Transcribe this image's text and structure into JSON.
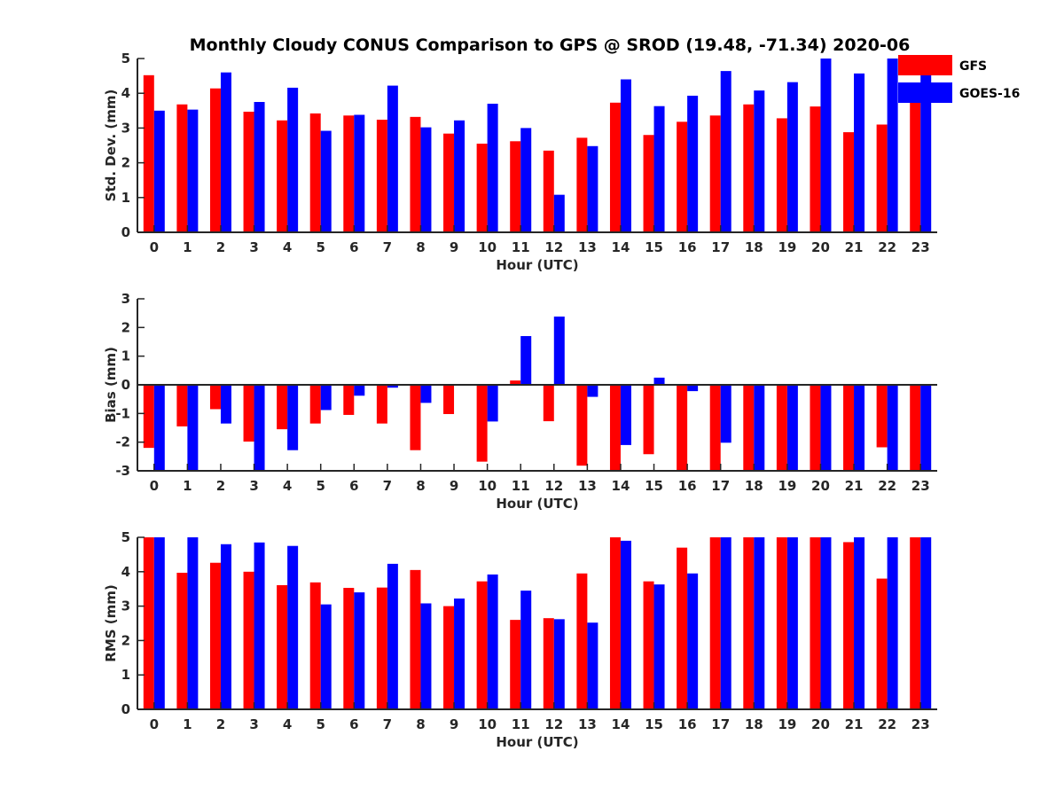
{
  "chart_data": {
    "type": "bar",
    "title": "Monthly Cloudy CONUS Comparison to GPS @ SROD (19.48, -71.34) 2020-06",
    "categories": [
      "0",
      "1",
      "2",
      "3",
      "4",
      "5",
      "6",
      "7",
      "8",
      "9",
      "10",
      "11",
      "12",
      "13",
      "14",
      "15",
      "16",
      "17",
      "18",
      "19",
      "20",
      "21",
      "22",
      "23"
    ],
    "legend": {
      "placement": "top-right",
      "entries": [
        {
          "name": "GFS",
          "color": "#ff0000"
        },
        {
          "name": "GOES-16",
          "color": "#0000ff"
        }
      ]
    },
    "panels": [
      {
        "ylabel": "Std. Dev. (mm)",
        "xlabel": "Hour (UTC)",
        "ylim": [
          0,
          5
        ],
        "yticks": [
          0,
          1,
          2,
          3,
          4,
          5
        ],
        "zero_line": false,
        "series": [
          {
            "name": "GFS",
            "color": "#ff0000",
            "values": [
              4.52,
              3.68,
              4.14,
              3.47,
              3.22,
              3.42,
              3.36,
              3.24,
              3.32,
              2.84,
              2.55,
              2.62,
              2.35,
              2.72,
              3.73,
              2.8,
              3.18,
              3.36,
              3.68,
              3.28,
              3.62,
              2.88,
              3.1,
              3.8
            ]
          },
          {
            "name": "GOES-16",
            "color": "#0000ff",
            "values": [
              3.5,
              3.53,
              4.6,
              3.75,
              4.16,
              2.92,
              3.38,
              4.22,
              3.02,
              3.22,
              3.7,
              3.0,
              1.08,
              2.48,
              4.4,
              3.63,
              3.93,
              4.64,
              4.08,
              4.32,
              5.0,
              4.57,
              5.0,
              5.0
            ]
          }
        ]
      },
      {
        "ylabel": "Bias (mm)",
        "xlabel": "Hour (UTC)",
        "ylim": [
          -3,
          3
        ],
        "yticks": [
          -3,
          -2,
          -1,
          0,
          1,
          2,
          3
        ],
        "zero_line": true,
        "series": [
          {
            "name": "GFS",
            "color": "#ff0000",
            "values": [
              -2.2,
              -1.45,
              -0.85,
              -1.98,
              -1.55,
              -1.35,
              -1.05,
              -1.35,
              -2.28,
              -1.02,
              -2.68,
              0.15,
              -1.27,
              -2.82,
              -3.0,
              -2.42,
              -3.0,
              -3.0,
              -3.0,
              -3.0,
              -3.0,
              -3.0,
              -2.18,
              -3.0
            ]
          },
          {
            "name": "GOES-16",
            "color": "#0000ff",
            "values": [
              -3.0,
              -3.0,
              -1.35,
              -3.0,
              -2.28,
              -0.88,
              -0.38,
              -0.1,
              -0.63,
              0,
              -1.28,
              1.7,
              2.38,
              -0.42,
              -2.1,
              0.25,
              -0.22,
              -2.02,
              -3.0,
              -3.0,
              -3.0,
              -2.98,
              -3.0,
              -3.0
            ]
          }
        ]
      },
      {
        "ylabel": "RMS (mm)",
        "xlabel": "Hour (UTC)",
        "ylim": [
          0,
          5
        ],
        "yticks": [
          0,
          1,
          2,
          3,
          4,
          5
        ],
        "zero_line": false,
        "series": [
          {
            "name": "GFS",
            "color": "#ff0000",
            "values": [
              5.0,
              3.97,
              4.26,
              4.0,
              3.61,
              3.69,
              3.53,
              3.54,
              4.05,
              3.0,
              3.72,
              2.6,
              2.65,
              3.95,
              5.0,
              3.72,
              4.7,
              5.0,
              5.0,
              5.0,
              5.0,
              4.86,
              3.8,
              5.0
            ]
          },
          {
            "name": "GOES-16",
            "color": "#0000ff",
            "values": [
              5.0,
              5.0,
              4.8,
              4.85,
              4.75,
              3.05,
              3.4,
              4.23,
              3.08,
              3.22,
              3.92,
              3.45,
              2.62,
              2.52,
              4.9,
              3.63,
              3.95,
              5.0,
              5.0,
              5.0,
              5.0,
              5.0,
              5.0,
              5.0
            ]
          }
        ]
      }
    ]
  }
}
